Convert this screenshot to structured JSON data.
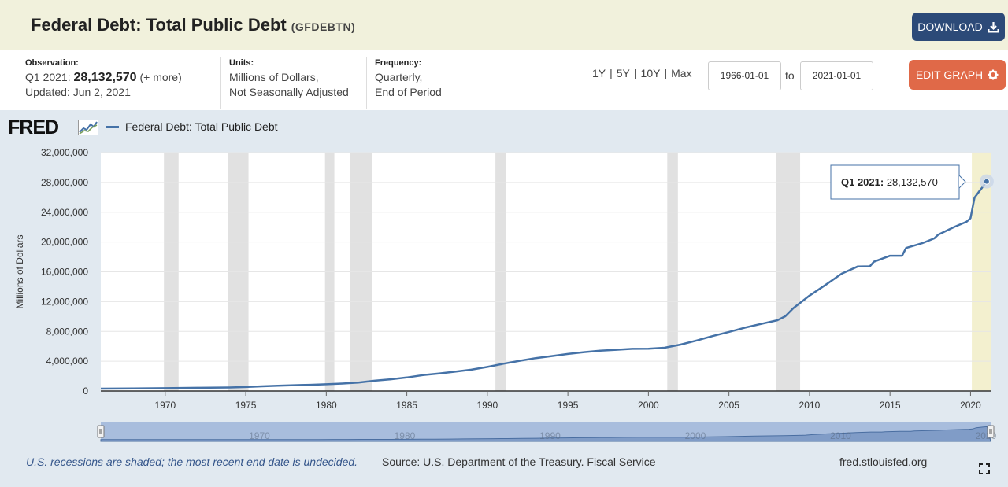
{
  "header": {
    "title": "Federal Debt: Total Public Debt",
    "series_code": "(GFDEBTN)",
    "download_label": "DOWNLOAD"
  },
  "meta": {
    "observation_label": "Observation:",
    "observation_period": "Q1 2021:",
    "observation_value": "28,132,570",
    "observation_more": "(+ more)",
    "updated": "Updated: Jun 2, 2021",
    "units_label": "Units:",
    "units_line1": "Millions of Dollars,",
    "units_line2": "Not Seasonally Adjusted",
    "frequency_label": "Frequency:",
    "frequency_line1": "Quarterly,",
    "frequency_line2": "End of Period"
  },
  "controls": {
    "range_1y": "1Y",
    "range_5y": "5Y",
    "range_10y": "10Y",
    "range_max": "Max",
    "start_date": "1966-01-01",
    "to_label": "to",
    "end_date": "2021-01-01",
    "edit_label": "EDIT GRAPH"
  },
  "graph": {
    "logo": "FRED",
    "legend_label": "Federal Debt: Total Public Debt",
    "tooltip_period": "Q1 2021:",
    "tooltip_value": "28,132,570",
    "footer_note": "U.S. recessions are shaded; the most recent end date is undecided.",
    "footer_source": "Source: U.S. Department of the Treasury. Fiscal Service",
    "footer_site": "fred.stlouisfed.org",
    "navigator_labels": [
      "1970",
      "1980",
      "1990",
      "2000",
      "2010",
      "2020"
    ]
  },
  "colors": {
    "line": "#4572a7",
    "recession": "#e1e1e1",
    "header_bg": "#f1f1dc",
    "panel_bg": "#e1e9f0",
    "download": "#2c4a78",
    "edit": "#e06948"
  },
  "chart_data": {
    "type": "line",
    "title": "Federal Debt: Total Public Debt",
    "ylabel": "Millions of Dollars",
    "xlabel": "",
    "xlim": [
      1966.0,
      2021.25
    ],
    "ylim": [
      0,
      32000000
    ],
    "yticks": [
      0,
      4000000,
      8000000,
      12000000,
      16000000,
      20000000,
      24000000,
      28000000,
      32000000
    ],
    "ytick_labels": [
      "0",
      "4,000,000",
      "8,000,000",
      "12,000,000",
      "16,000,000",
      "20,000,000",
      "24,000,000",
      "28,000,000",
      "32,000,000"
    ],
    "xticks": [
      1970,
      1975,
      1980,
      1985,
      1990,
      1995,
      2000,
      2005,
      2010,
      2015,
      2020
    ],
    "xtick_labels": [
      "1970",
      "1975",
      "1980",
      "1985",
      "1990",
      "1995",
      "2000",
      "2005",
      "2010",
      "2015",
      "2020"
    ],
    "grid": true,
    "legend": "top-left",
    "recessions": [
      [
        1969.92,
        1970.83
      ],
      [
        1973.92,
        1975.17
      ],
      [
        1979.92,
        1980.5
      ],
      [
        1981.5,
        1982.83
      ],
      [
        1990.5,
        1991.17
      ],
      [
        2001.17,
        2001.83
      ],
      [
        2007.92,
        2009.42
      ],
      [
        2020.08,
        2021.25
      ]
    ],
    "series": [
      {
        "name": "Federal Debt: Total Public Debt",
        "x": [
          1966.0,
          1968.0,
          1970.0,
          1972.0,
          1974.0,
          1975.0,
          1976.0,
          1977.0,
          1978.0,
          1979.0,
          1980.0,
          1981.0,
          1982.0,
          1983.0,
          1984.0,
          1985.0,
          1986.0,
          1987.0,
          1988.0,
          1989.0,
          1990.0,
          1991.0,
          1992.0,
          1993.0,
          1994.0,
          1995.0,
          1996.0,
          1997.0,
          1998.0,
          1999.0,
          2000.0,
          2001.0,
          2002.0,
          2003.0,
          2004.0,
          2005.0,
          2006.0,
          2007.0,
          2008.0,
          2008.5,
          2009.0,
          2010.0,
          2011.0,
          2012.0,
          2013.0,
          2013.75,
          2014.0,
          2015.0,
          2015.75,
          2016.0,
          2017.0,
          2017.75,
          2018.0,
          2019.0,
          2019.75,
          2020.0,
          2020.25,
          2020.5,
          2020.75,
          2021.0
        ],
        "y": [
          320000,
          350000,
          380000,
          430000,
          480000,
          540000,
          630000,
          710000,
          780000,
          830000,
          910000,
          1000000,
          1140000,
          1380000,
          1570000,
          1820000,
          2130000,
          2350000,
          2600000,
          2860000,
          3230000,
          3660000,
          4060000,
          4410000,
          4690000,
          4970000,
          5220000,
          5410000,
          5530000,
          5660000,
          5670000,
          5810000,
          6230000,
          6780000,
          7380000,
          7930000,
          8510000,
          9010000,
          9490000,
          10030000,
          11130000,
          12800000,
          14250000,
          15750000,
          16720000,
          16740000,
          17350000,
          18150000,
          18150000,
          19200000,
          19840000,
          20490000,
          21000000,
          22030000,
          22720000,
          23200000,
          25950000,
          26700000,
          27380000,
          28132570
        ]
      }
    ],
    "annotations": [
      {
        "text": "Q1 2021: 28,132,570",
        "x": 2021.0,
        "y": 28132570
      }
    ]
  }
}
